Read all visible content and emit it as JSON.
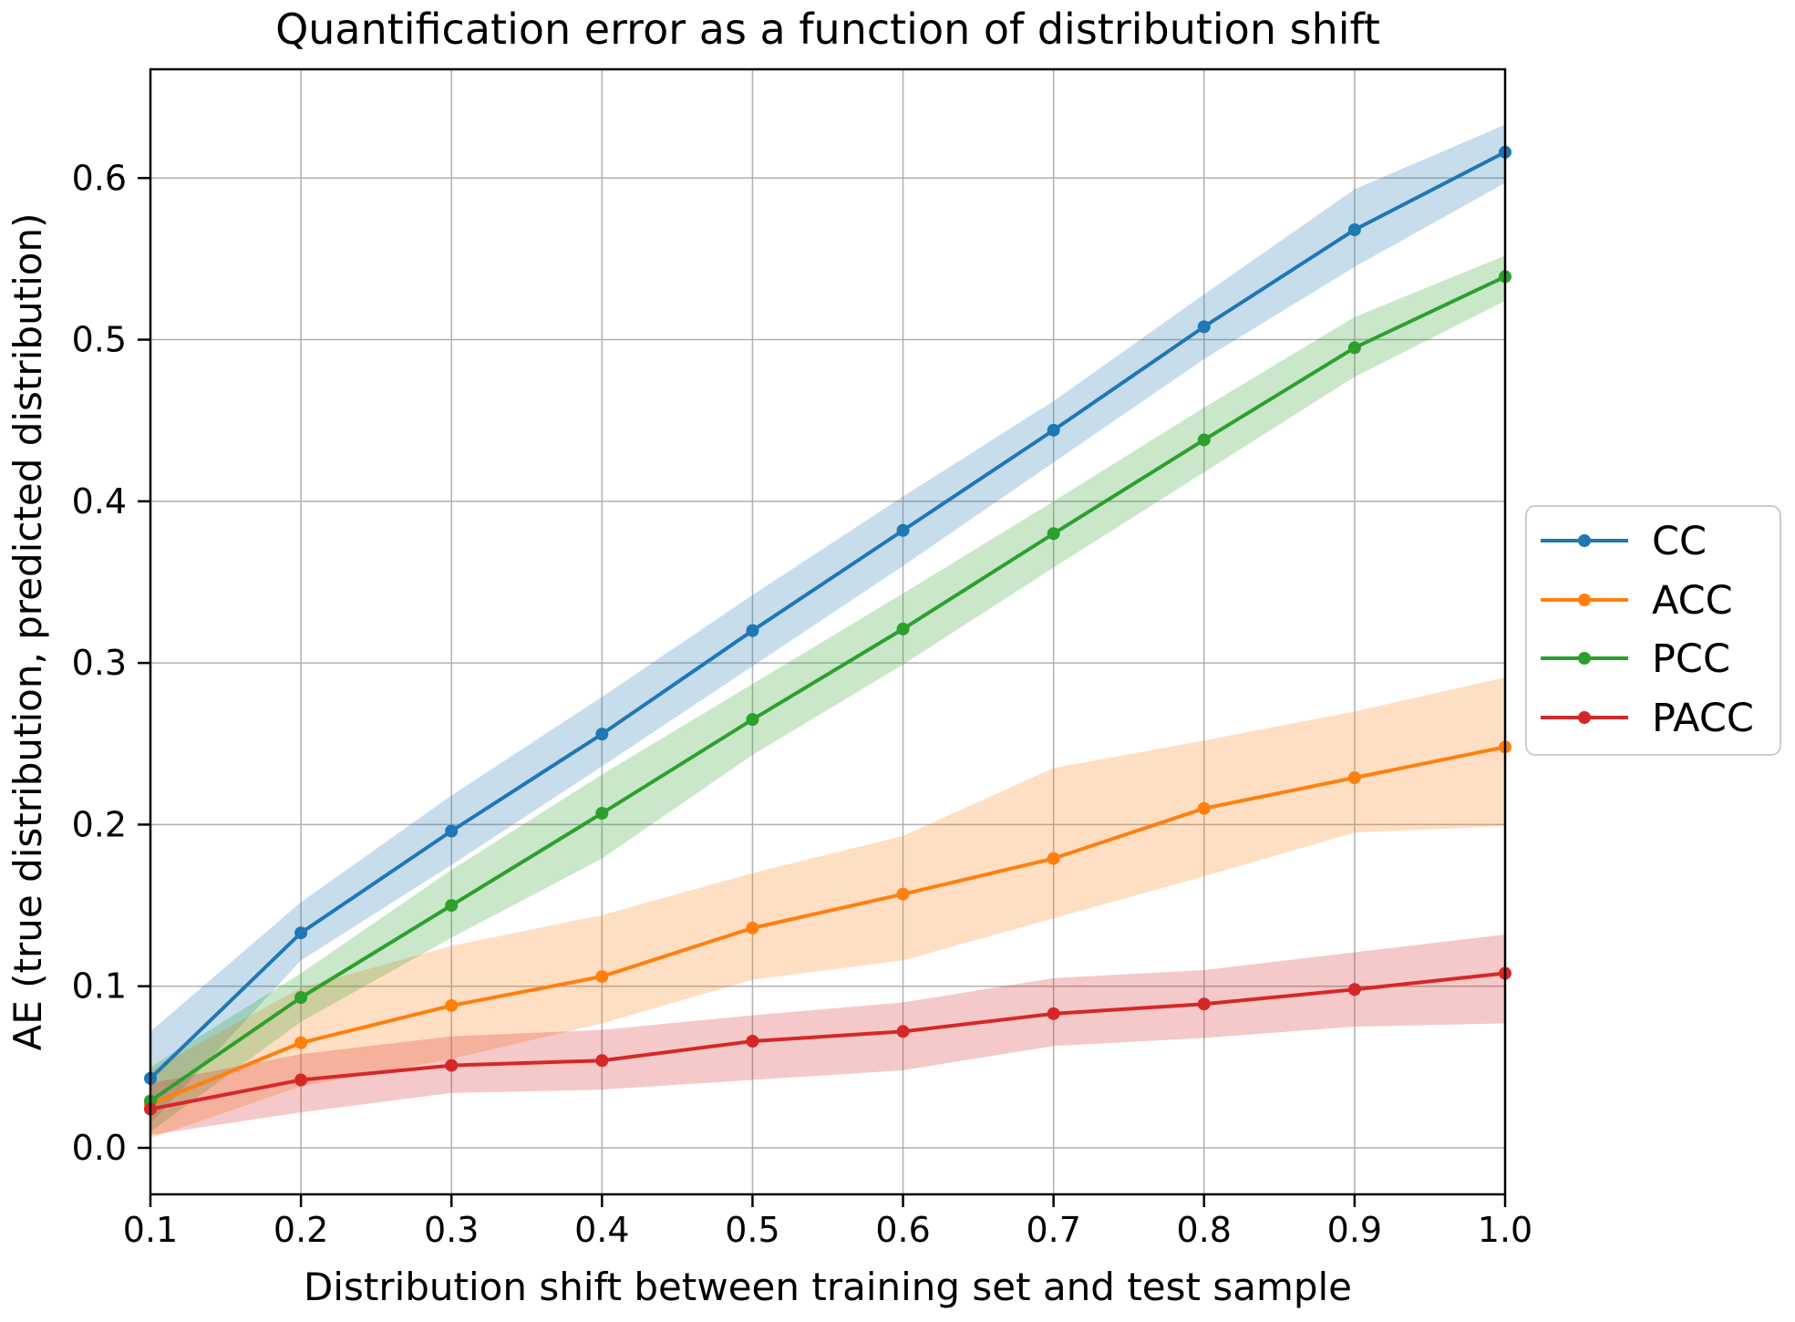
{
  "chart_data": {
    "type": "line",
    "title": "Quantification error as a function of distribution shift",
    "xlabel": "Distribution shift between training set and test sample",
    "ylabel": "AE (true distribution, predicted distribution)",
    "x": [
      0.1,
      0.2,
      0.3,
      0.4,
      0.5,
      0.6,
      0.7,
      0.8,
      0.9,
      1.0
    ],
    "xticklabels": [
      "0.1",
      "0.2",
      "0.3",
      "0.4",
      "0.5",
      "0.6",
      "0.7",
      "0.8",
      "0.9",
      "1.0"
    ],
    "yticks": [
      0.0,
      0.1,
      0.2,
      0.3,
      0.4,
      0.5,
      0.6
    ],
    "yticklabels": [
      "0.0",
      "0.1",
      "0.2",
      "0.3",
      "0.4",
      "0.5",
      "0.6"
    ],
    "xlim": [
      0.1,
      1.0
    ],
    "ylim": [
      -0.029,
      0.667
    ],
    "grid": true,
    "grid_color": "#b0b0b0",
    "spine_color": "#000000",
    "legend_position": "outside-center-right",
    "band_opacity": 0.25,
    "series": [
      {
        "name": "CC",
        "color": "#1f77b4",
        "values": [
          0.043,
          0.133,
          0.196,
          0.256,
          0.32,
          0.382,
          0.444,
          0.508,
          0.568,
          0.616
        ],
        "band_lower": [
          0.015,
          0.116,
          0.175,
          0.236,
          0.298,
          0.36,
          0.424,
          0.488,
          0.545,
          0.597
        ],
        "band_upper": [
          0.072,
          0.152,
          0.218,
          0.279,
          0.342,
          0.403,
          0.462,
          0.528,
          0.593,
          0.633
        ]
      },
      {
        "name": "ACC",
        "color": "#ff7f0e",
        "values": [
          0.027,
          0.065,
          0.088,
          0.106,
          0.136,
          0.157,
          0.179,
          0.21,
          0.229,
          0.248
        ],
        "band_lower": [
          0.006,
          0.038,
          0.055,
          0.077,
          0.104,
          0.116,
          0.142,
          0.168,
          0.195,
          0.199
        ],
        "band_upper": [
          0.048,
          0.099,
          0.125,
          0.144,
          0.17,
          0.193,
          0.235,
          0.252,
          0.27,
          0.291
        ]
      },
      {
        "name": "PCC",
        "color": "#2ca02c",
        "values": [
          0.029,
          0.093,
          0.15,
          0.207,
          0.265,
          0.321,
          0.38,
          0.438,
          0.495,
          0.539
        ],
        "band_lower": [
          0.01,
          0.078,
          0.13,
          0.179,
          0.243,
          0.299,
          0.359,
          0.418,
          0.477,
          0.524
        ],
        "band_upper": [
          0.05,
          0.108,
          0.172,
          0.231,
          0.287,
          0.343,
          0.4,
          0.458,
          0.514,
          0.552
        ]
      },
      {
        "name": "PACC",
        "color": "#d62728",
        "values": [
          0.024,
          0.042,
          0.051,
          0.054,
          0.066,
          0.072,
          0.083,
          0.089,
          0.098,
          0.108
        ],
        "band_lower": [
          0.008,
          0.022,
          0.034,
          0.036,
          0.042,
          0.048,
          0.063,
          0.068,
          0.075,
          0.077
        ],
        "band_upper": [
          0.04,
          0.058,
          0.069,
          0.073,
          0.082,
          0.09,
          0.105,
          0.11,
          0.121,
          0.132
        ]
      }
    ]
  }
}
